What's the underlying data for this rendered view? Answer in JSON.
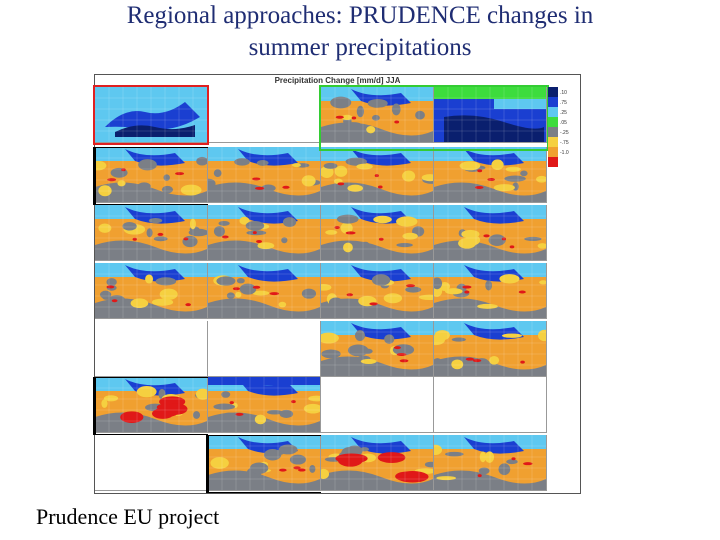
{
  "title_lines": [
    "Regional approaches: PRUDENCE changes in",
    "summer precipitations"
  ],
  "figure": {
    "title": "Precipitation Change [mm/d] JJA",
    "legend_labels": [
      ".10",
      ".75",
      ".25",
      ".05",
      "-.25",
      "-.75",
      "-1.0"
    ],
    "colors": {
      "blue": "#1a3fd1",
      "light_blue": "#5ec8f0",
      "green": "#3ddc3d",
      "dark_blue": "#0a1f6e",
      "orange": "#f0a030",
      "yellow": "#f5d040",
      "red": "#e01818",
      "gray": "#7b7f86"
    }
  },
  "footer": "Prudence EU project"
}
